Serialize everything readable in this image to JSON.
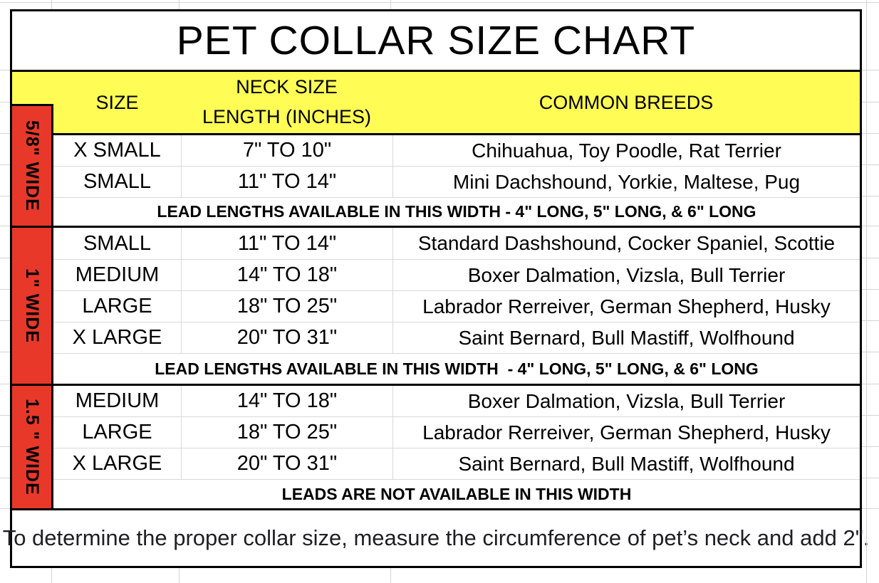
{
  "title": "PET COLLAR SIZE CHART",
  "header": {
    "size": "SIZE",
    "neck_line1": "NECK SIZE",
    "neck_line2": "LENGTH (INCHES)",
    "breeds": "COMMON BREEDS"
  },
  "sections": [
    {
      "width_label": "5/8\" WIDE",
      "rows": [
        {
          "size": "X SMALL",
          "neck": "7\" TO 10\"",
          "breeds": "Chihuahua, Toy Poodle, Rat Terrier"
        },
        {
          "size": "SMALL",
          "neck": "11\" TO 14\"",
          "breeds": "Mini Dachshound, Yorkie, Maltese, Pug"
        }
      ],
      "note": "LEAD LENGTHS AVAILABLE IN THIS WIDTH - 4\" LONG, 5\" LONG, & 6\" LONG"
    },
    {
      "width_label": "1\" WIDE",
      "rows": [
        {
          "size": "SMALL",
          "neck": "11\" TO 14\"",
          "breeds": "Standard Dashshound, Cocker Spaniel, Scottie"
        },
        {
          "size": "MEDIUM",
          "neck": "14\" TO 18\"",
          "breeds": "Boxer Dalmation, Vizsla, Bull Terrier"
        },
        {
          "size": "LARGE",
          "neck": "18\" TO 25\"",
          "breeds": "Labrador Rerreiver, German Shepherd, Husky"
        },
        {
          "size": "X LARGE",
          "neck": "20\" TO 31\"",
          "breeds": "Saint Bernard, Bull Mastiff, Wolfhound"
        }
      ],
      "note": "LEAD LENGTHS AVAILABLE IN THIS WIDTH  - 4\" LONG, 5\" LONG, & 6\" LONG"
    },
    {
      "width_label": "1.5 \" WIDE",
      "rows": [
        {
          "size": "MEDIUM",
          "neck": "14\" TO 18\"",
          "breeds": "Boxer Dalmation, Vizsla, Bull Terrier"
        },
        {
          "size": "LARGE",
          "neck": "18\" TO 25\"",
          "breeds": "Labrador Rerreiver, German Shepherd, Husky"
        },
        {
          "size": "X LARGE",
          "neck": "20\" TO 31\"",
          "breeds": "Saint Bernard, Bull Mastiff, Wolfhound"
        }
      ],
      "note": "LEADS ARE NOT AVAILABLE IN THIS WIDTH"
    }
  ],
  "footer": "To determine the proper collar size, measure the circumference of pet’s neck and add 2\".",
  "colors": {
    "header_bg": "#FFFC55",
    "band_bg": "#E8382A",
    "border": "#000000",
    "gridline": "#D5D5D5"
  },
  "chart_data": {
    "type": "table",
    "title": "PET COLLAR SIZE CHART",
    "columns": [
      "WIDTH",
      "SIZE",
      "NECK SIZE LENGTH (INCHES)",
      "COMMON BREEDS"
    ],
    "rows": [
      [
        "5/8\" WIDE",
        "X SMALL",
        "7\" TO 10\"",
        "Chihuahua, Toy Poodle, Rat Terrier"
      ],
      [
        "5/8\" WIDE",
        "SMALL",
        "11\" TO 14\"",
        "Mini Dachshound, Yorkie, Maltese, Pug"
      ],
      [
        "1\" WIDE",
        "SMALL",
        "11\" TO 14\"",
        "Standard Dashshound, Cocker Spaniel, Scottie"
      ],
      [
        "1\" WIDE",
        "MEDIUM",
        "14\" TO 18\"",
        "Boxer Dalmation, Vizsla, Bull Terrier"
      ],
      [
        "1\" WIDE",
        "LARGE",
        "18\" TO 25\"",
        "Labrador Rerreiver, German Shepherd, Husky"
      ],
      [
        "1\" WIDE",
        "X LARGE",
        "20\" TO 31\"",
        "Saint Bernard, Bull Mastiff, Wolfhound"
      ],
      [
        "1.5 \" WIDE",
        "MEDIUM",
        "14\" TO 18\"",
        "Boxer Dalmation, Vizsla, Bull Terrier"
      ],
      [
        "1.5 \" WIDE",
        "LARGE",
        "18\" TO 25\"",
        "Labrador Rerreiver, German Shepherd, Husky"
      ],
      [
        "1.5 \" WIDE",
        "X LARGE",
        "20\" TO 31\"",
        "Saint Bernard, Bull Mastiff, Wolfhound"
      ]
    ],
    "section_notes": [
      "LEAD LENGTHS AVAILABLE IN THIS WIDTH - 4\" LONG, 5\" LONG, & 6\" LONG",
      "LEAD LENGTHS AVAILABLE IN THIS WIDTH  - 4\" LONG, 5\" LONG, & 6\" LONG",
      "LEADS ARE NOT AVAILABLE IN THIS WIDTH"
    ],
    "footnote": "To determine the proper collar size, measure the circumference of pet’s neck and add 2\"."
  }
}
